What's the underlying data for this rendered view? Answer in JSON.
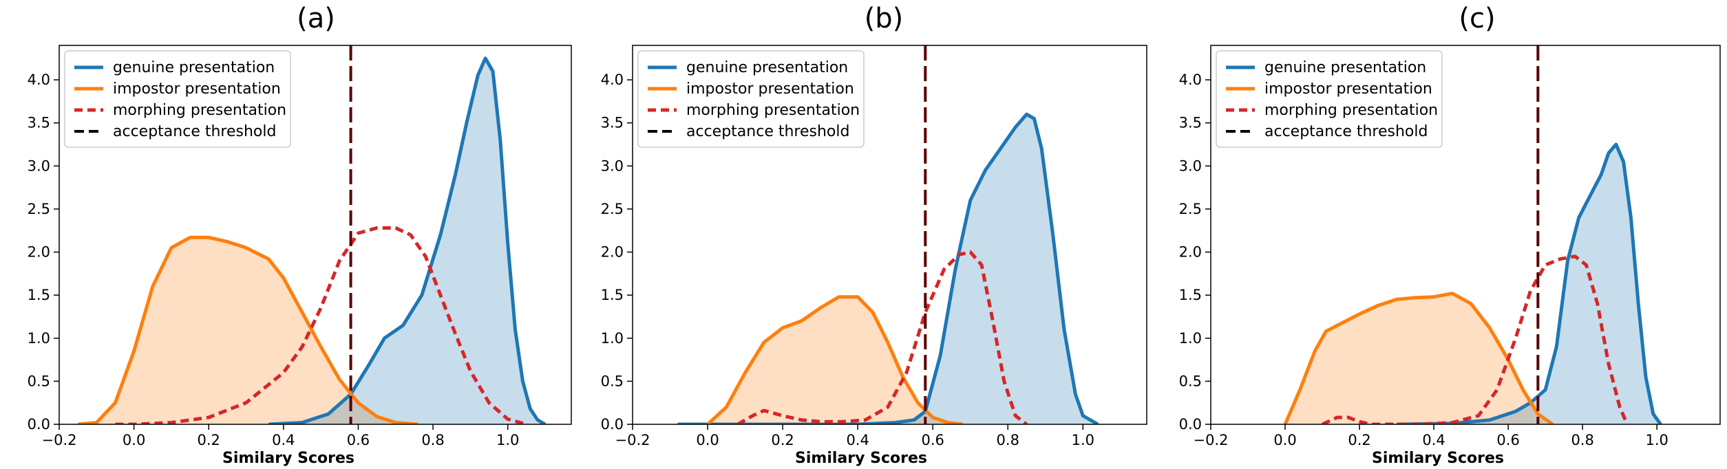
{
  "chart_data": [
    {
      "type": "area",
      "title": "(a)",
      "xlabel": "Similary Scores",
      "ylabel": "",
      "xlim": [
        -0.2,
        1.17
      ],
      "ylim": [
        0,
        4.4
      ],
      "xticks": [
        "−0.2",
        "0.0",
        "0.2",
        "0.4",
        "0.6",
        "0.8",
        "1.0"
      ],
      "yticks": [
        "0.0",
        "0.5",
        "1.0",
        "1.5",
        "2.0",
        "2.5",
        "3.0",
        "3.5",
        "4.0"
      ],
      "threshold": 0.58,
      "legend_position": "top-left",
      "legend": [
        "genuine presentation",
        "impostor presentation",
        "morphing presentation",
        "acceptance threshold"
      ],
      "series": [
        {
          "name": "genuine presentation",
          "style": "solid-filled",
          "color": "#1f77b4",
          "points": [
            [
              0.36,
              0
            ],
            [
              0.45,
              0.02
            ],
            [
              0.52,
              0.12
            ],
            [
              0.58,
              0.35
            ],
            [
              0.63,
              0.7
            ],
            [
              0.67,
              1.0
            ],
            [
              0.72,
              1.15
            ],
            [
              0.77,
              1.5
            ],
            [
              0.82,
              2.2
            ],
            [
              0.86,
              2.9
            ],
            [
              0.89,
              3.5
            ],
            [
              0.92,
              4.05
            ],
            [
              0.94,
              4.25
            ],
            [
              0.96,
              4.1
            ],
            [
              0.98,
              3.3
            ],
            [
              1.0,
              2.1
            ],
            [
              1.02,
              1.1
            ],
            [
              1.04,
              0.5
            ],
            [
              1.06,
              0.18
            ],
            [
              1.08,
              0.05
            ],
            [
              1.1,
              0
            ]
          ]
        },
        {
          "name": "impostor presentation",
          "style": "solid-filled",
          "color": "#ff7f0e",
          "points": [
            [
              -0.15,
              0
            ],
            [
              -0.1,
              0.02
            ],
            [
              -0.05,
              0.25
            ],
            [
              0.0,
              0.85
            ],
            [
              0.05,
              1.6
            ],
            [
              0.1,
              2.05
            ],
            [
              0.15,
              2.17
            ],
            [
              0.2,
              2.17
            ],
            [
              0.25,
              2.12
            ],
            [
              0.3,
              2.05
            ],
            [
              0.36,
              1.92
            ],
            [
              0.4,
              1.7
            ],
            [
              0.45,
              1.3
            ],
            [
              0.5,
              0.9
            ],
            [
              0.55,
              0.52
            ],
            [
              0.6,
              0.25
            ],
            [
              0.65,
              0.09
            ],
            [
              0.7,
              0.02
            ],
            [
              0.76,
              0
            ]
          ]
        },
        {
          "name": "morphing presentation",
          "style": "dashed",
          "color": "#d62728",
          "points": [
            [
              -0.05,
              0
            ],
            [
              0.0,
              0
            ],
            [
              0.1,
              0.02
            ],
            [
              0.2,
              0.08
            ],
            [
              0.3,
              0.25
            ],
            [
              0.4,
              0.6
            ],
            [
              0.45,
              0.9
            ],
            [
              0.5,
              1.35
            ],
            [
              0.55,
              1.9
            ],
            [
              0.6,
              2.22
            ],
            [
              0.65,
              2.28
            ],
            [
              0.7,
              2.28
            ],
            [
              0.74,
              2.2
            ],
            [
              0.78,
              1.95
            ],
            [
              0.82,
              1.5
            ],
            [
              0.86,
              1.05
            ],
            [
              0.9,
              0.62
            ],
            [
              0.95,
              0.25
            ],
            [
              1.0,
              0.06
            ],
            [
              1.05,
              0
            ]
          ]
        }
      ]
    },
    {
      "type": "area",
      "title": "(b)",
      "xlabel": "Similary Scores",
      "ylabel": "",
      "xlim": [
        -0.2,
        1.17
      ],
      "ylim": [
        0,
        4.4
      ],
      "xticks": [
        "−0.2",
        "0.0",
        "0.2",
        "0.4",
        "0.6",
        "0.8",
        "1.0"
      ],
      "yticks": [
        "0.0",
        "0.5",
        "1.0",
        "1.5",
        "2.0",
        "2.5",
        "3.0",
        "3.5",
        "4.0"
      ],
      "threshold": 0.58,
      "legend_position": "top-left",
      "legend": [
        "genuine presentation",
        "impostor presentation",
        "morphing presentation",
        "acceptance threshold"
      ],
      "series": [
        {
          "name": "genuine presentation",
          "style": "solid-filled",
          "color": "#1f77b4",
          "points": [
            [
              -0.08,
              0
            ],
            [
              0.2,
              0
            ],
            [
              0.4,
              0
            ],
            [
              0.5,
              0.02
            ],
            [
              0.55,
              0.05
            ],
            [
              0.58,
              0.15
            ],
            [
              0.62,
              0.8
            ],
            [
              0.66,
              1.8
            ],
            [
              0.7,
              2.6
            ],
            [
              0.74,
              2.95
            ],
            [
              0.78,
              3.2
            ],
            [
              0.82,
              3.45
            ],
            [
              0.85,
              3.6
            ],
            [
              0.87,
              3.55
            ],
            [
              0.89,
              3.2
            ],
            [
              0.92,
              2.2
            ],
            [
              0.95,
              1.1
            ],
            [
              0.98,
              0.35
            ],
            [
              1.0,
              0.1
            ],
            [
              1.04,
              0
            ]
          ]
        },
        {
          "name": "impostor presentation",
          "style": "solid-filled",
          "color": "#ff7f0e",
          "points": [
            [
              0.0,
              0
            ],
            [
              0.05,
              0.2
            ],
            [
              0.1,
              0.6
            ],
            [
              0.15,
              0.95
            ],
            [
              0.2,
              1.12
            ],
            [
              0.25,
              1.2
            ],
            [
              0.3,
              1.35
            ],
            [
              0.35,
              1.48
            ],
            [
              0.4,
              1.48
            ],
            [
              0.44,
              1.3
            ],
            [
              0.48,
              0.95
            ],
            [
              0.52,
              0.55
            ],
            [
              0.56,
              0.25
            ],
            [
              0.6,
              0.08
            ],
            [
              0.64,
              0.02
            ],
            [
              0.68,
              0
            ]
          ]
        },
        {
          "name": "morphing presentation",
          "style": "dashed",
          "color": "#d62728",
          "points": [
            [
              0.08,
              0
            ],
            [
              0.12,
              0.1
            ],
            [
              0.15,
              0.16
            ],
            [
              0.2,
              0.1
            ],
            [
              0.25,
              0.05
            ],
            [
              0.3,
              0.03
            ],
            [
              0.36,
              0.03
            ],
            [
              0.42,
              0.05
            ],
            [
              0.48,
              0.2
            ],
            [
              0.53,
              0.6
            ],
            [
              0.58,
              1.3
            ],
            [
              0.63,
              1.8
            ],
            [
              0.67,
              1.97
            ],
            [
              0.7,
              2.0
            ],
            [
              0.73,
              1.85
            ],
            [
              0.76,
              1.2
            ],
            [
              0.79,
              0.5
            ],
            [
              0.82,
              0.1
            ],
            [
              0.85,
              0
            ]
          ]
        }
      ]
    },
    {
      "type": "area",
      "title": "(c)",
      "xlabel": "Similary Scores",
      "ylabel": "",
      "xlim": [
        -0.2,
        1.17
      ],
      "ylim": [
        0,
        4.4
      ],
      "xticks": [
        "−0.2",
        "0.0",
        "0.2",
        "0.4",
        "0.6",
        "0.8",
        "1.0"
      ],
      "yticks": [
        "0.0",
        "0.5",
        "1.0",
        "1.5",
        "2.0",
        "2.5",
        "3.0",
        "3.5",
        "4.0"
      ],
      "threshold": 0.68,
      "legend_position": "top-left",
      "legend": [
        "genuine presentation",
        "impostor presentation",
        "morphing presentation",
        "acceptance threshold"
      ],
      "series": [
        {
          "name": "genuine presentation",
          "style": "solid-filled",
          "color": "#1f77b4",
          "points": [
            [
              0.3,
              0
            ],
            [
              0.45,
              0.01
            ],
            [
              0.55,
              0.05
            ],
            [
              0.62,
              0.15
            ],
            [
              0.66,
              0.25
            ],
            [
              0.7,
              0.4
            ],
            [
              0.73,
              0.9
            ],
            [
              0.76,
              1.9
            ],
            [
              0.79,
              2.4
            ],
            [
              0.82,
              2.65
            ],
            [
              0.85,
              2.9
            ],
            [
              0.87,
              3.15
            ],
            [
              0.89,
              3.25
            ],
            [
              0.91,
              3.05
            ],
            [
              0.93,
              2.4
            ],
            [
              0.95,
              1.4
            ],
            [
              0.97,
              0.55
            ],
            [
              0.99,
              0.12
            ],
            [
              1.01,
              0
            ]
          ]
        },
        {
          "name": "impostor presentation",
          "style": "solid-filled",
          "color": "#ff7f0e",
          "points": [
            [
              0.0,
              0
            ],
            [
              0.04,
              0.4
            ],
            [
              0.08,
              0.85
            ],
            [
              0.11,
              1.08
            ],
            [
              0.15,
              1.17
            ],
            [
              0.2,
              1.28
            ],
            [
              0.25,
              1.38
            ],
            [
              0.3,
              1.45
            ],
            [
              0.35,
              1.47
            ],
            [
              0.4,
              1.48
            ],
            [
              0.45,
              1.52
            ],
            [
              0.5,
              1.4
            ],
            [
              0.55,
              1.12
            ],
            [
              0.6,
              0.75
            ],
            [
              0.64,
              0.4
            ],
            [
              0.68,
              0.12
            ],
            [
              0.72,
              0
            ]
          ]
        },
        {
          "name": "morphing presentation",
          "style": "dashed",
          "color": "#d62728",
          "points": [
            [
              0.1,
              0
            ],
            [
              0.14,
              0.08
            ],
            [
              0.17,
              0.08
            ],
            [
              0.2,
              0.03
            ],
            [
              0.23,
              0
            ],
            [
              0.36,
              0
            ],
            [
              0.45,
              0.02
            ],
            [
              0.52,
              0.1
            ],
            [
              0.57,
              0.4
            ],
            [
              0.62,
              1.0
            ],
            [
              0.66,
              1.55
            ],
            [
              0.7,
              1.85
            ],
            [
              0.74,
              1.92
            ],
            [
              0.78,
              1.95
            ],
            [
              0.81,
              1.85
            ],
            [
              0.84,
              1.4
            ],
            [
              0.87,
              0.7
            ],
            [
              0.9,
              0.2
            ],
            [
              0.92,
              0
            ]
          ]
        }
      ]
    }
  ]
}
